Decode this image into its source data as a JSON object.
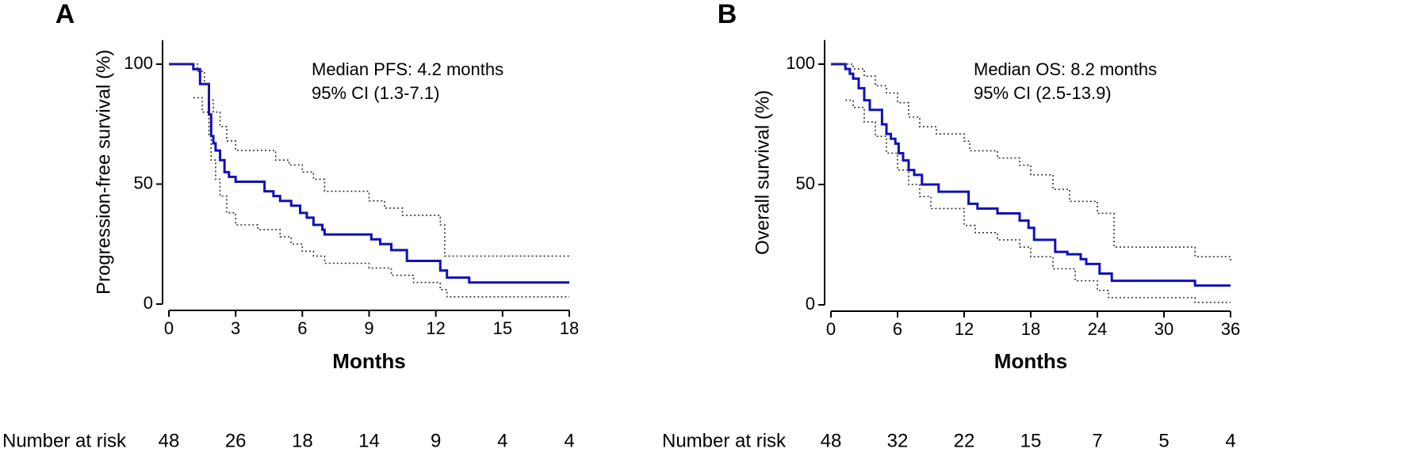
{
  "chart_data": [
    {
      "type": "km",
      "panel_label": "A",
      "ylabel": "Progression-free survival (%)",
      "xlabel": "Months",
      "annotation": [
        "Median PFS: 4.2 months",
        "95% CI (1.3-7.1)"
      ],
      "xlim": [
        0,
        18
      ],
      "xticks": [
        0,
        3,
        6,
        9,
        12,
        15,
        18
      ],
      "ylim": [
        0,
        110
      ],
      "yticks": [
        0,
        50,
        100
      ],
      "series": [
        {
          "color": "#1010b8",
          "dash": "solid",
          "x": [
            0,
            1.1,
            1.4,
            1.8,
            1.9,
            2.0,
            2.1,
            2.3,
            2.5,
            2.7,
            3.0,
            4.3,
            4.7,
            5.0,
            5.5,
            5.9,
            6.2,
            6.5,
            6.9,
            7.0,
            9.1,
            9.5,
            10.0,
            10.7,
            12.2,
            12.5,
            13.5,
            18
          ],
          "values": [
            100,
            97.9,
            91.7,
            79,
            70,
            67,
            64,
            60,
            55,
            53,
            51,
            47,
            45,
            43,
            41,
            38,
            36,
            33,
            31,
            29,
            27,
            25,
            22.5,
            18,
            14,
            11,
            9,
            9
          ]
        },
        {
          "color": "#333333",
          "dash": "dotted",
          "x": [
            0,
            1.3,
            1.6,
            1.8,
            2.0,
            2.3,
            2.6,
            3.0,
            4.1,
            4.8,
            5.4,
            6.0,
            6.5,
            7.0,
            9.0,
            9.7,
            10.5,
            12.2,
            12.4,
            18
          ],
          "values": [
            100,
            97,
            92,
            85,
            80,
            74,
            68,
            64,
            64,
            60,
            58,
            55,
            52,
            47,
            43,
            40,
            37,
            33,
            20,
            20
          ]
        },
        {
          "color": "#333333",
          "dash": "dotted",
          "x": [
            1.1,
            1.5,
            1.8,
            1.9,
            2.1,
            2.3,
            2.6,
            3.0,
            4.0,
            5.0,
            5.5,
            6.0,
            6.5,
            7.0,
            9.0,
            10.0,
            11.0,
            12.2,
            12.5,
            18
          ],
          "values": [
            86,
            80,
            70,
            60,
            52,
            45,
            38,
            33,
            31,
            28,
            25,
            22,
            20,
            17,
            15,
            12,
            9,
            6,
            3,
            3
          ]
        }
      ],
      "risk_table": {
        "label": "Number at risk",
        "values": [
          48,
          26,
          18,
          14,
          9,
          4,
          4
        ]
      }
    },
    {
      "type": "km",
      "panel_label": "B",
      "ylabel": "Overall survival (%)",
      "xlabel": "Months",
      "annotation": [
        "Median OS: 8.2 months",
        "95% CI (2.5-13.9)"
      ],
      "xlim": [
        0,
        36
      ],
      "xticks": [
        0,
        6,
        12,
        18,
        24,
        30,
        36
      ],
      "ylim": [
        0,
        110
      ],
      "yticks": [
        0,
        50,
        100
      ],
      "series": [
        {
          "color": "#1010b8",
          "dash": "solid",
          "x": [
            0,
            1.3,
            1.7,
            2.0,
            2.5,
            3.0,
            3.5,
            4.6,
            5.0,
            5.4,
            5.8,
            6.1,
            6.5,
            7.0,
            7.5,
            8.2,
            9.7,
            12.4,
            13.2,
            15.0,
            17.0,
            17.8,
            18.3,
            20.2,
            21.3,
            22.5,
            23.0,
            24.2,
            25.3,
            32.8,
            36
          ],
          "values": [
            100,
            98,
            96,
            94,
            90,
            85,
            81,
            75,
            71,
            69,
            67,
            63,
            60,
            56,
            54,
            50,
            47,
            42,
            40,
            38,
            35,
            32,
            27,
            22,
            21,
            19,
            17,
            13,
            10,
            8,
            8
          ]
        },
        {
          "color": "#333333",
          "dash": "dotted",
          "x": [
            0,
            2.0,
            3.0,
            4.0,
            5.0,
            6.0,
            7.0,
            8.0,
            9.5,
            12.0,
            12.5,
            15.0,
            17.0,
            18.0,
            20.0,
            21.5,
            24.0,
            25.5,
            32.8,
            36
          ],
          "values": [
            100,
            98,
            95,
            91,
            88,
            84,
            78,
            74,
            71,
            68,
            64,
            61,
            58,
            54,
            48,
            43,
            38,
            24,
            20,
            18
          ]
        },
        {
          "color": "#333333",
          "dash": "dotted",
          "x": [
            1.3,
            2.0,
            3.0,
            4.0,
            5.0,
            6.0,
            7.0,
            8.0,
            9.0,
            12.0,
            13.0,
            15.0,
            17.0,
            18.0,
            20.0,
            22.0,
            24.0,
            25.0,
            32.8,
            36
          ],
          "values": [
            85,
            82,
            76,
            70,
            63,
            56,
            50,
            45,
            40,
            33,
            30,
            27,
            24,
            20,
            15,
            10,
            6,
            3,
            1,
            1
          ]
        }
      ],
      "risk_table": {
        "label": "Number at risk",
        "values": [
          48,
          32,
          22,
          15,
          7,
          5,
          4
        ]
      }
    }
  ]
}
